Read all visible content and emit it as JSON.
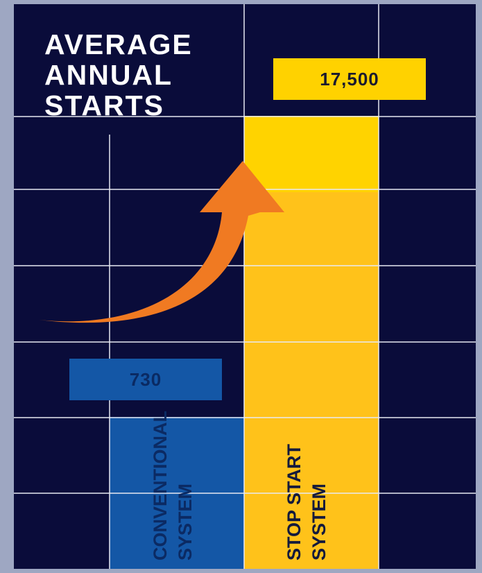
{
  "chart_data": {
    "type": "bar",
    "title": "AVERAGE ANNUAL STARTS",
    "title_lines": [
      "AVERAGE",
      "ANNUAL",
      "STARTS"
    ],
    "categories": [
      "CONVENTIONAL SYSTEM",
      "STOP START SYSTEM"
    ],
    "category_lines": [
      [
        "CONVENTIONAL",
        "SYSTEM"
      ],
      [
        "STOP START",
        "SYSTEM"
      ]
    ],
    "values": [
      730,
      17500
    ],
    "value_labels": [
      "730",
      "17,500"
    ],
    "bar_colors": [
      "#1457a6",
      "#ffc21a"
    ],
    "arrow_color": "#f07a22",
    "background_color": "#0a0c3a",
    "grid": true,
    "xlabel": "",
    "ylabel": ""
  }
}
